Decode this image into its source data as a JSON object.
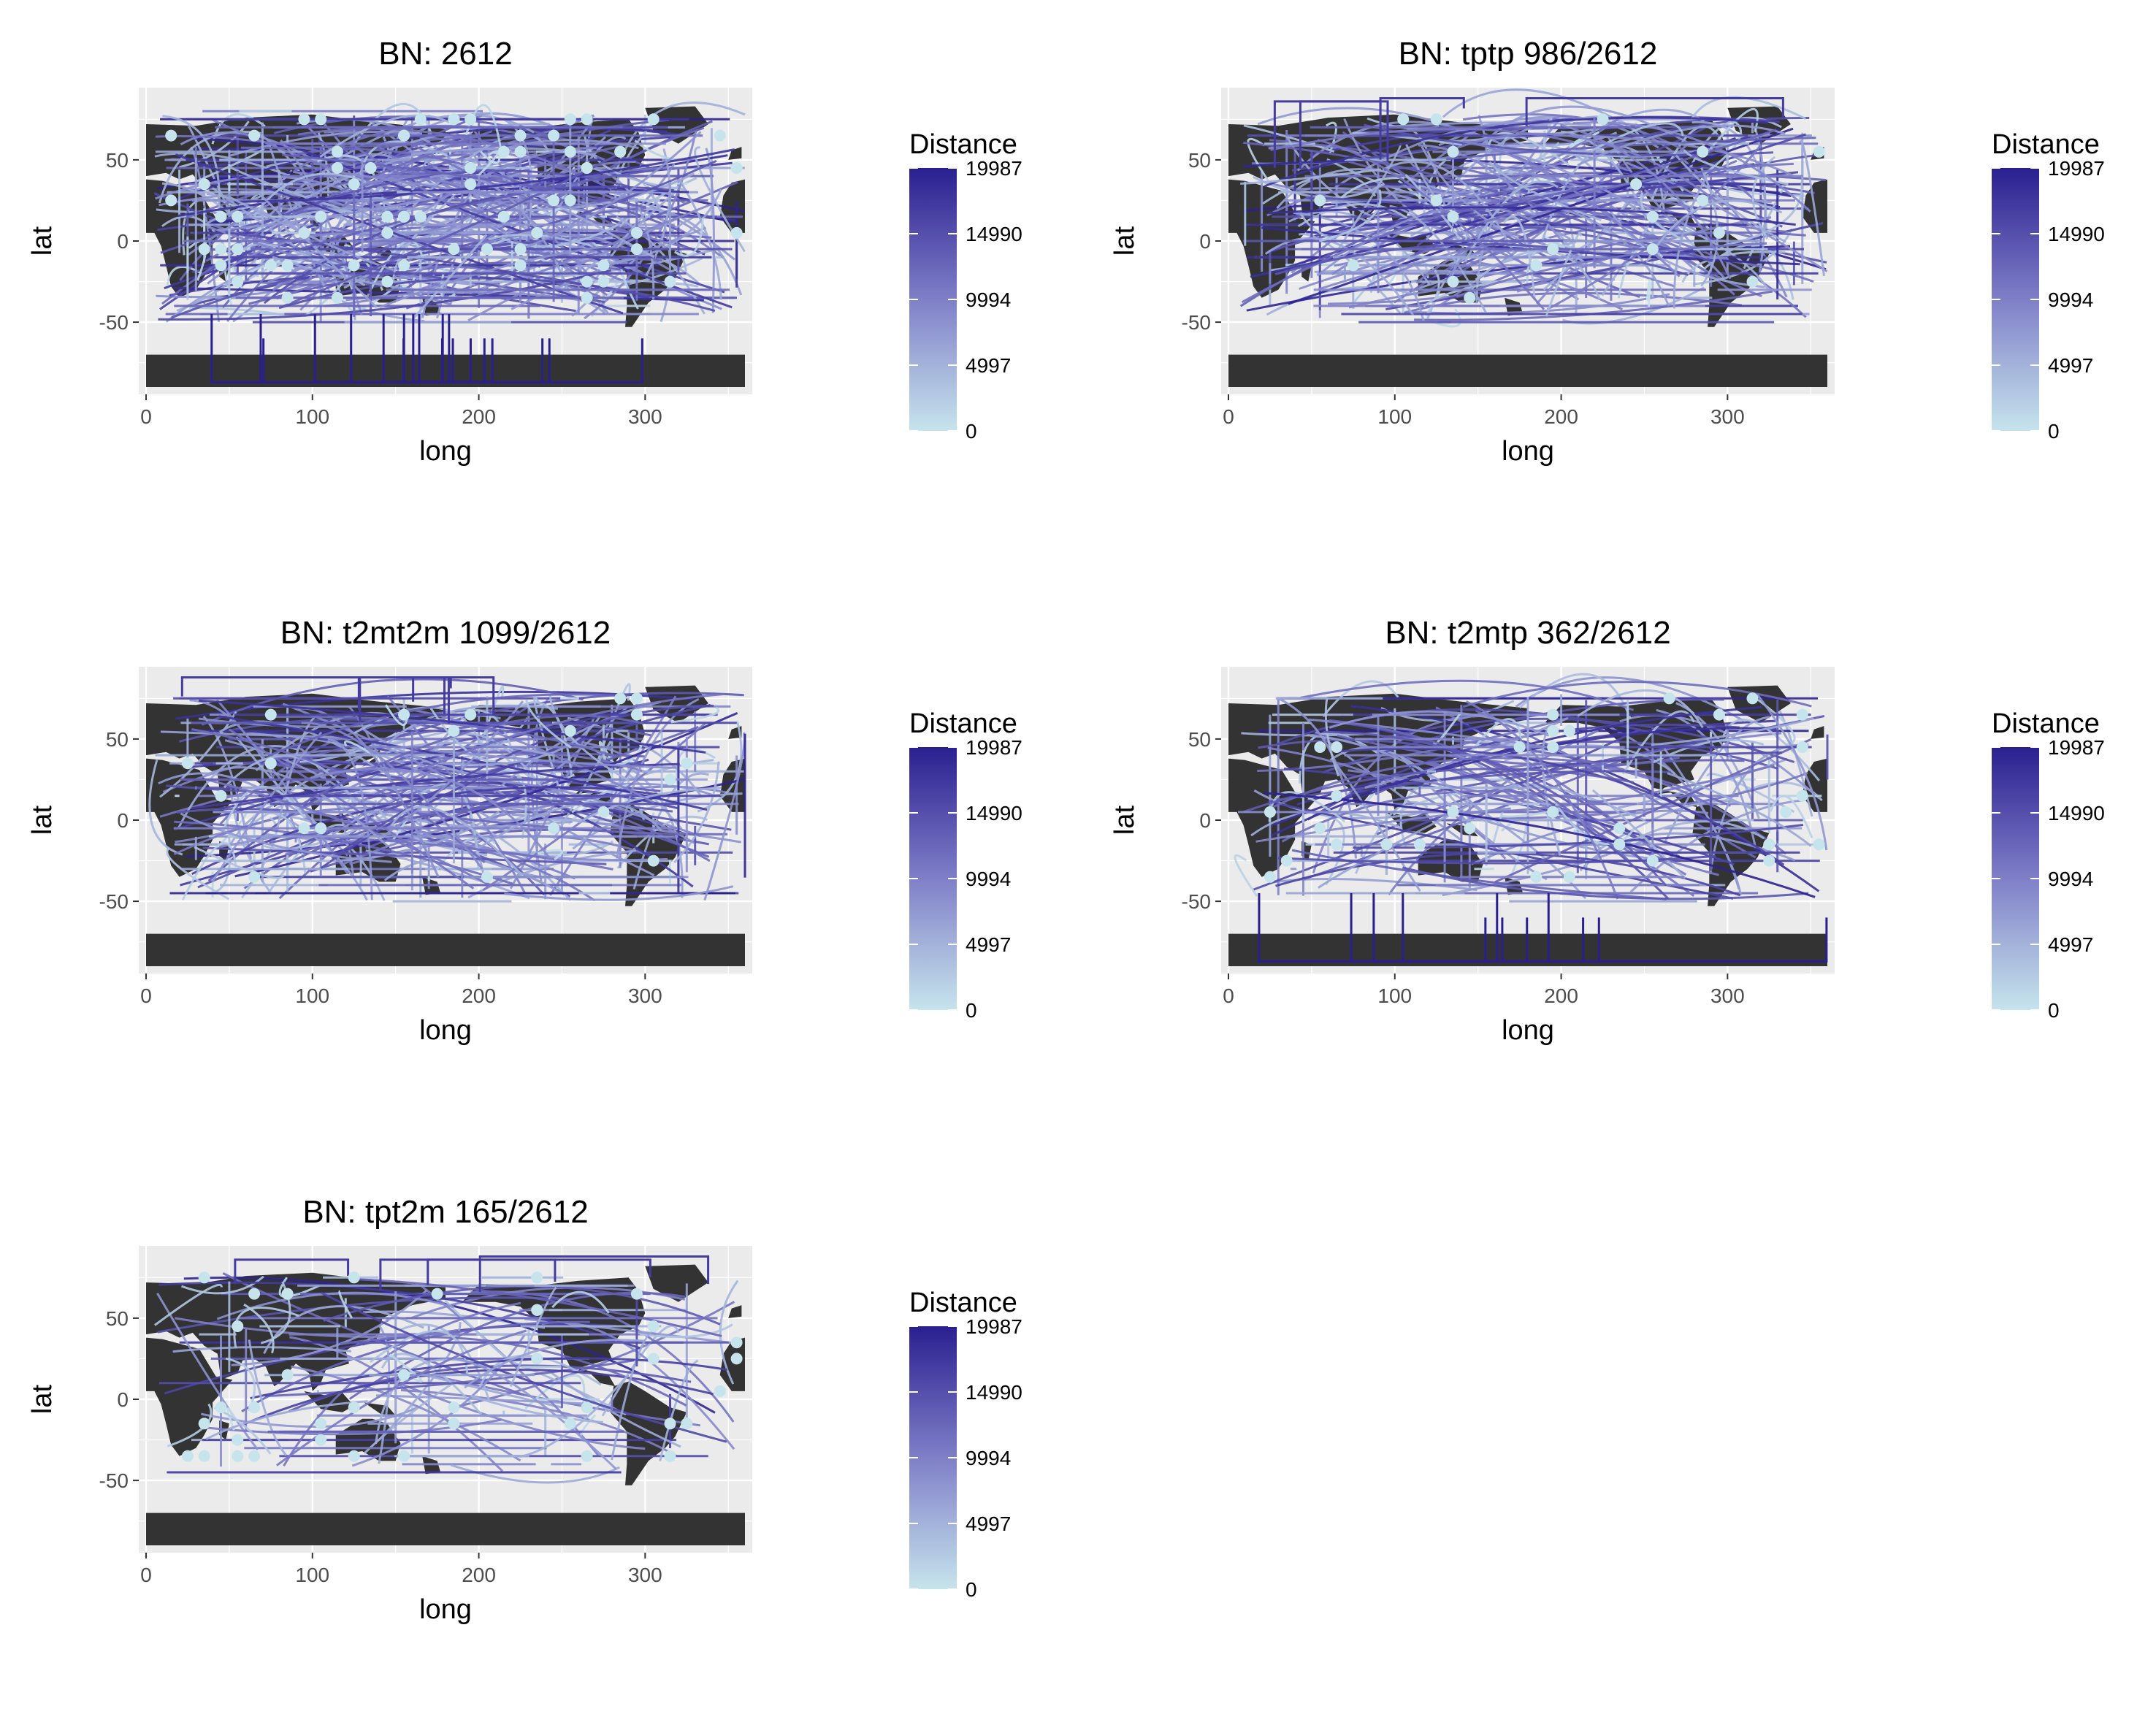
{
  "colors": {
    "panel_background": "#ebebeb",
    "grid": "#ffffff",
    "land": "#333333",
    "axis_text": "#4d4d4d",
    "title_text": "#000000",
    "scale_low": "#c6e4ec",
    "scale_mid": "#7f7fc8",
    "scale_high": "#2a1f8f"
  },
  "legend": {
    "title": "Distance",
    "ticks": [
      "19987",
      "14990",
      "9994",
      "4997",
      "0"
    ],
    "tick_values": [
      19987,
      14990,
      9994,
      4997,
      0
    ],
    "range": [
      0,
      19987
    ]
  },
  "chart_data": [
    {
      "type": "map",
      "title": "BN:  2612",
      "xlabel": "long",
      "ylabel": "lat",
      "xlim": [
        0,
        360
      ],
      "ylim": [
        -90,
        90
      ],
      "xticks": [
        "0",
        "100",
        "200",
        "300"
      ],
      "xtick_values": [
        0,
        100,
        200,
        300
      ],
      "yticks": [
        "50",
        "0",
        "-50"
      ],
      "ytick_values": [
        50,
        0,
        -50
      ],
      "density": "very high",
      "color_key": "Distance"
    },
    {
      "type": "map",
      "title": "BN: tptp 986/2612",
      "xlabel": "long",
      "ylabel": "lat",
      "xlim": [
        0,
        360
      ],
      "ylim": [
        -90,
        90
      ],
      "xticks": [
        "0",
        "100",
        "200",
        "300"
      ],
      "xtick_values": [
        0,
        100,
        200,
        300
      ],
      "yticks": [
        "50",
        "0",
        "-50"
      ],
      "ytick_values": [
        50,
        0,
        -50
      ],
      "density": "high",
      "color_key": "Distance"
    },
    {
      "type": "map",
      "title": "BN: t2mt2m 1099/2612",
      "xlabel": "long",
      "ylabel": "lat",
      "xlim": [
        0,
        360
      ],
      "ylim": [
        -90,
        90
      ],
      "xticks": [
        "0",
        "100",
        "200",
        "300"
      ],
      "xtick_values": [
        0,
        100,
        200,
        300
      ],
      "yticks": [
        "50",
        "0",
        "-50"
      ],
      "ytick_values": [
        50,
        0,
        -50
      ],
      "density": "high",
      "color_key": "Distance"
    },
    {
      "type": "map",
      "title": "BN: t2mtp 362/2612",
      "xlabel": "long",
      "ylabel": "lat",
      "xlim": [
        0,
        360
      ],
      "ylim": [
        -90,
        90
      ],
      "xticks": [
        "0",
        "100",
        "200",
        "300"
      ],
      "xtick_values": [
        0,
        100,
        200,
        300
      ],
      "yticks": [
        "50",
        "0",
        "-50"
      ],
      "ytick_values": [
        50,
        0,
        -50
      ],
      "density": "medium",
      "color_key": "Distance"
    },
    {
      "type": "map",
      "title": "BN: tpt2m 165/2612",
      "xlabel": "long",
      "ylabel": "lat",
      "xlim": [
        0,
        360
      ],
      "ylim": [
        -90,
        90
      ],
      "xticks": [
        "0",
        "100",
        "200",
        "300"
      ],
      "xtick_values": [
        0,
        100,
        200,
        300
      ],
      "yticks": [
        "50",
        "0",
        "-50"
      ],
      "ytick_values": [
        50,
        0,
        -50
      ],
      "density": "low",
      "color_key": "Distance"
    }
  ]
}
